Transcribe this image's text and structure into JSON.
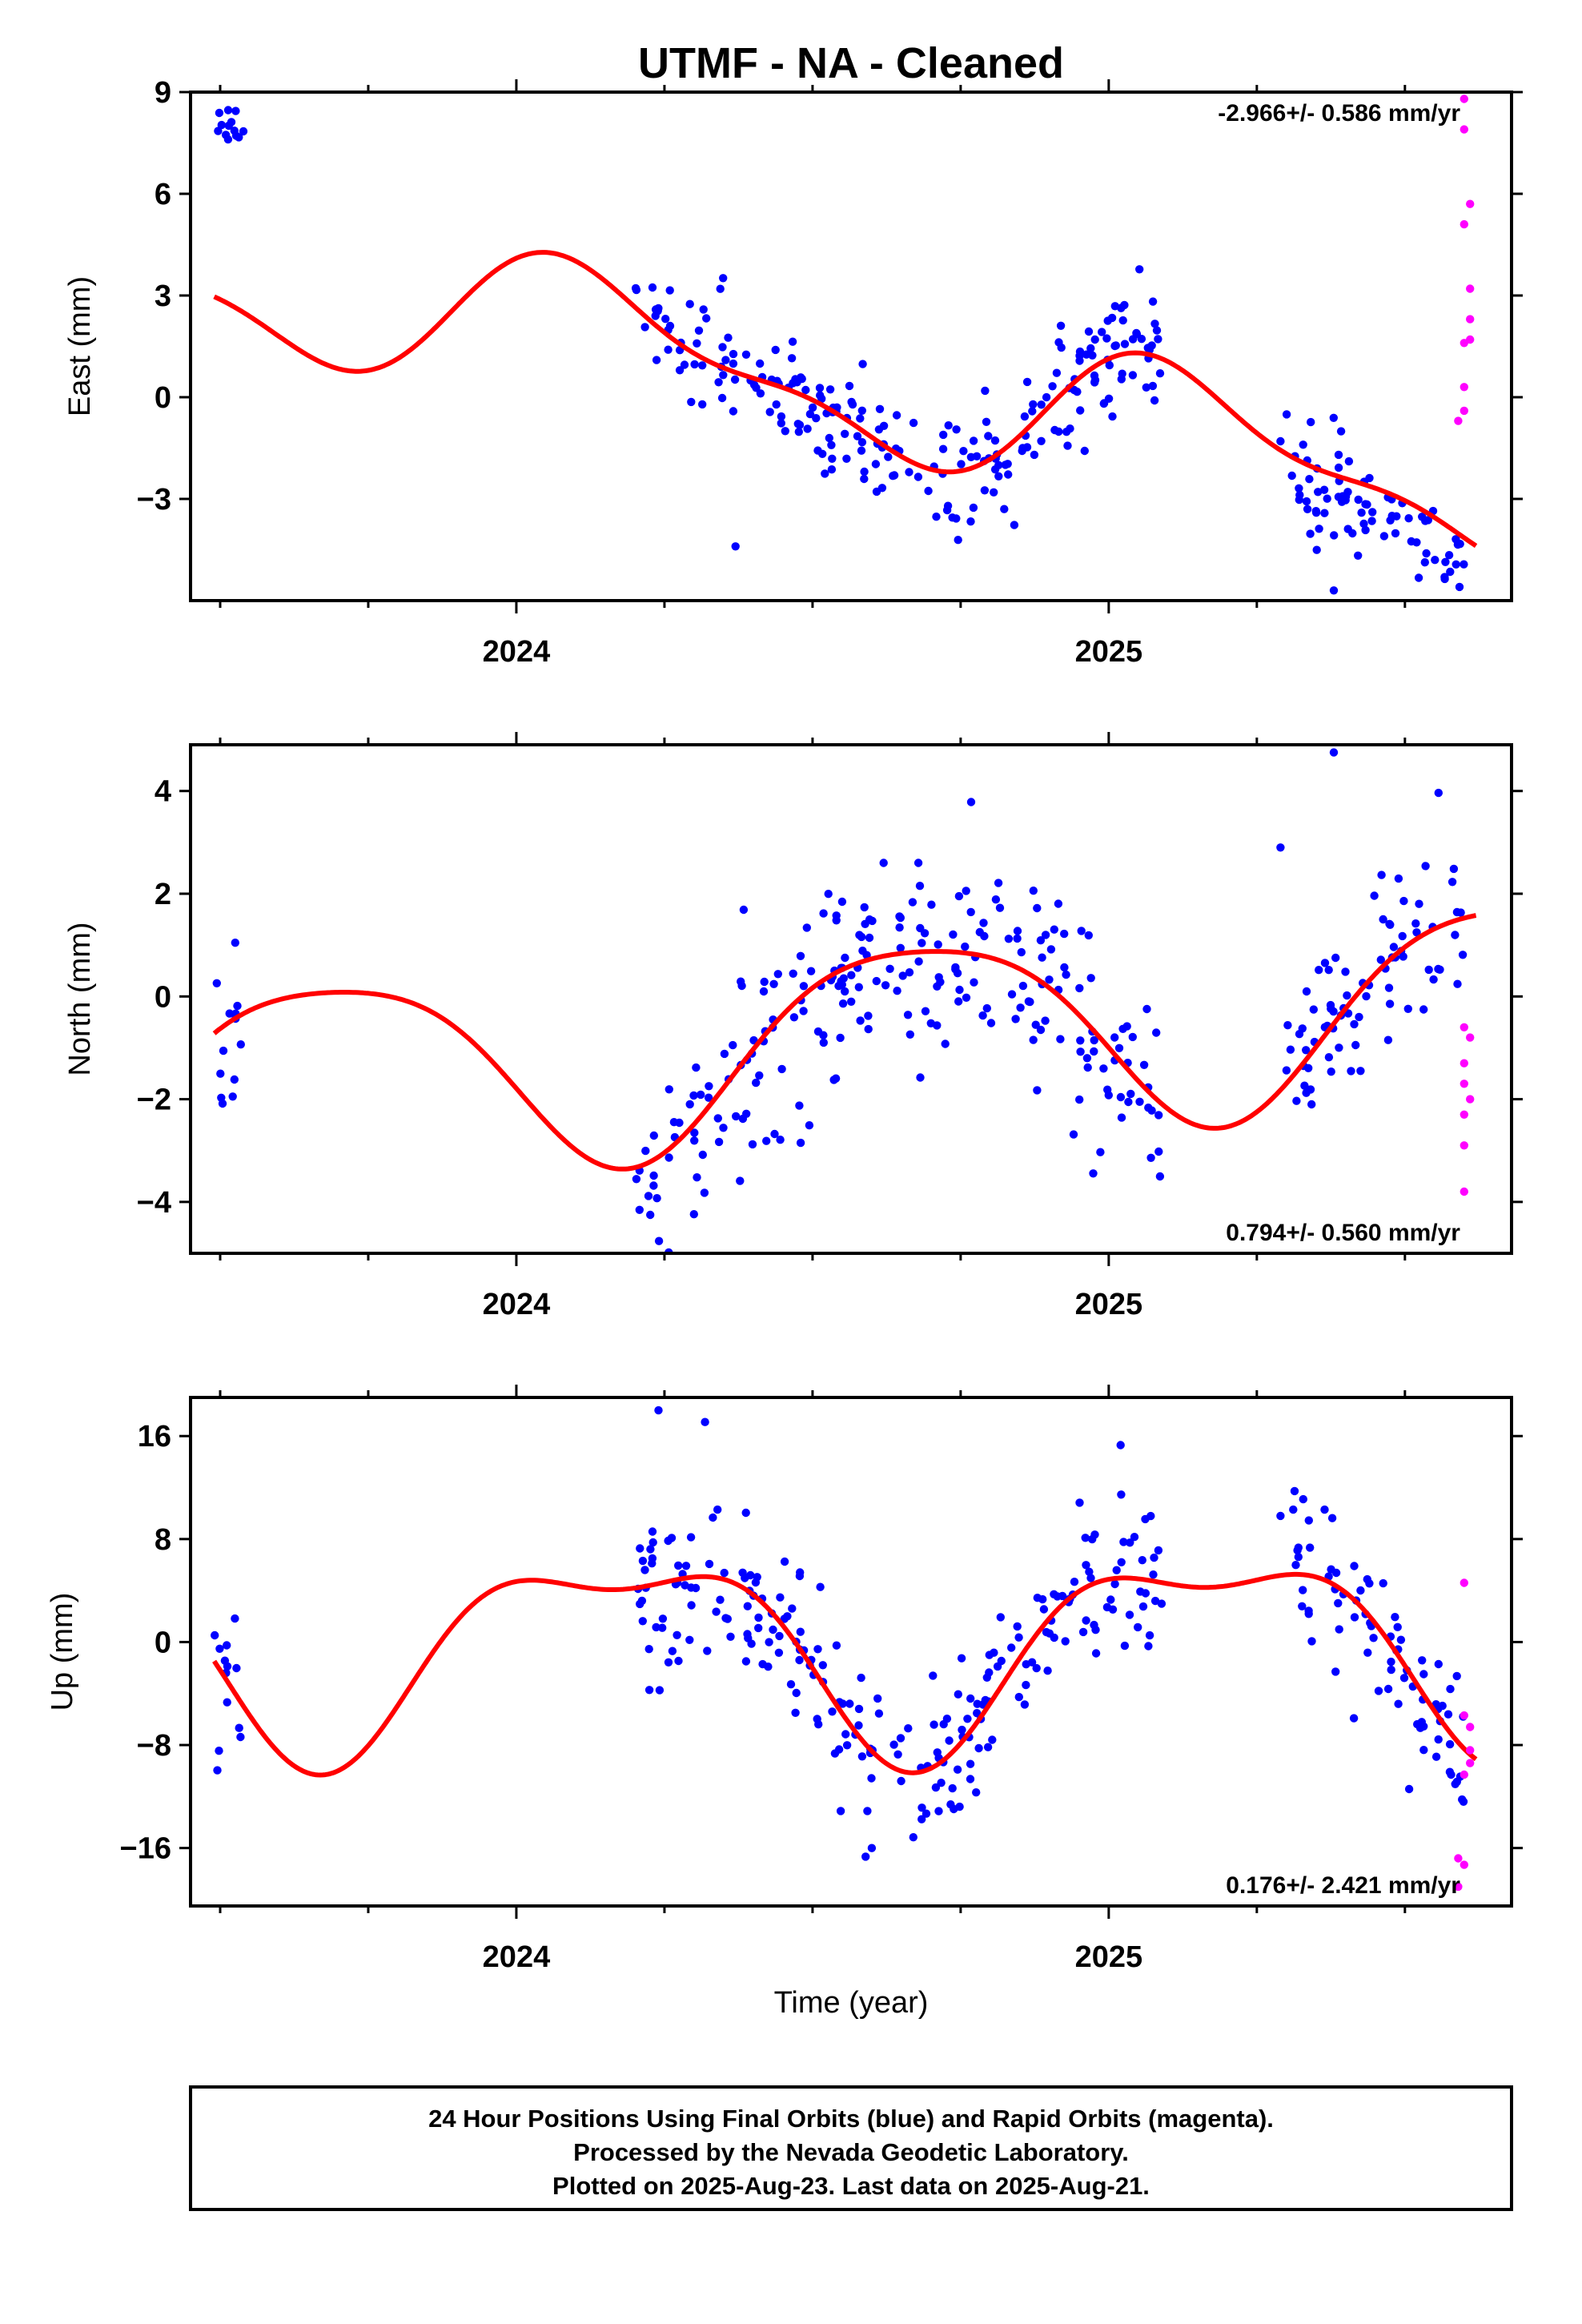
{
  "title": "UTMF  - NA - Cleaned",
  "x_axis_label": "Time (year)",
  "footer": {
    "line1": "24 Hour Positions Using Final Orbits (blue) and Rapid Orbits (magenta).",
    "line2": "Processed by the Nevada Geodetic Laboratory.",
    "line3": "Plotted on 2025-Aug-23. Last data on 2025-Aug-21."
  },
  "colors": {
    "final": "#0000ff",
    "rapid": "#ff00ff",
    "model": "#ff0000",
    "frame": "#000000"
  },
  "chart_data": [
    {
      "type": "scatter",
      "ylabel": "East (mm)",
      "rate_label": "-2.966+/- 0.586 mm/yr",
      "rate_position": "top-right",
      "xlim": [
        2023.45,
        2025.68
      ],
      "ylim": [
        -6.0,
        9.0
      ],
      "yticks": [
        -3,
        0,
        3,
        6,
        9
      ],
      "ytick_labels": [
        "−3",
        "0",
        "3",
        "6",
        "9"
      ],
      "xticks": [
        2024,
        2025
      ],
      "xtick_labels": [
        "2024",
        "2025"
      ],
      "minor_xticks": [
        2023.5,
        2023.75,
        2024.25,
        2024.5,
        2024.75,
        2025.25,
        2025.5
      ],
      "seasonal_model": {
        "trend_value_at_2024": 2.05,
        "trend_mm_per_yr": -2.966,
        "annual": [
          1.3,
          1.35
        ],
        "semiannual": [
          0.2,
          0.7
        ]
      },
      "final_segments": [
        [
          2023.49,
          2023.54,
          0.3,
          5.3
        ],
        [
          2024.2,
          2025.09,
          0.9,
          0
        ],
        [
          2025.3,
          2025.6,
          0.8,
          -0.6
        ]
      ],
      "isolated_final": [
        [
          2024.37,
          -4.4
        ],
        [
          2025.29,
          -1.3
        ],
        [
          2025.38,
          -5.7
        ]
      ],
      "rapid_points": [
        [
          2025.6,
          8.8
        ],
        [
          2025.6,
          7.9
        ],
        [
          2025.61,
          5.7
        ],
        [
          2025.6,
          5.1
        ],
        [
          2025.61,
          3.2
        ],
        [
          2025.61,
          2.3
        ],
        [
          2025.61,
          1.7
        ],
        [
          2025.6,
          1.6
        ],
        [
          2025.6,
          0.3
        ],
        [
          2025.59,
          -0.7
        ],
        [
          2025.6,
          -0.4
        ]
      ]
    },
    {
      "type": "scatter",
      "ylabel": "North (mm)",
      "rate_label": "0.794+/- 0.560 mm/yr",
      "rate_position": "bottom-right",
      "xlim": [
        2023.45,
        2025.68
      ],
      "ylim": [
        -5.0,
        4.9
      ],
      "yticks": [
        -4,
        -2,
        0,
        2,
        4
      ],
      "ytick_labels": [
        "−4",
        "−2",
        "0",
        "2",
        "4"
      ],
      "xticks": [
        2024,
        2025
      ],
      "xtick_labels": [
        "2024",
        "2025"
      ],
      "minor_xticks": [
        2023.5,
        2023.75,
        2024.25,
        2024.5,
        2024.75,
        2025.25,
        2025.5
      ],
      "seasonal_model": {
        "trend_value_at_2024": -1.25,
        "trend_mm_per_yr": 0.794,
        "annual": [
          -1.75,
          -0.78
        ],
        "semiannual": [
          -0.24,
          0.24
        ]
      },
      "final_segments": [
        [
          2023.49,
          2023.54,
          0.9,
          0
        ],
        [
          2024.2,
          2025.09,
          1.0,
          0
        ],
        [
          2025.3,
          2025.6,
          0.8,
          0
        ]
      ],
      "isolated_final": [
        [
          2024.62,
          2.6
        ],
        [
          2024.48,
          -2.85
        ],
        [
          2025.29,
          2.9
        ],
        [
          2025.38,
          4.75
        ]
      ],
      "rapid_points": [
        [
          2025.6,
          -0.6
        ],
        [
          2025.61,
          -0.8
        ],
        [
          2025.6,
          -1.3
        ],
        [
          2025.6,
          -1.7
        ],
        [
          2025.61,
          -2.0
        ],
        [
          2025.6,
          -2.3
        ],
        [
          2025.6,
          -2.9
        ],
        [
          2025.6,
          -3.8
        ]
      ]
    },
    {
      "type": "scatter",
      "ylabel": "Up (mm)",
      "rate_label": "0.176+/- 2.421 mm/yr",
      "rate_position": "bottom-right",
      "xlim": [
        2023.45,
        2025.68
      ],
      "ylim": [
        -20.5,
        19.0
      ],
      "yticks": [
        -16,
        -8,
        0,
        8,
        16
      ],
      "ytick_labels": [
        "−16",
        "−8",
        "0",
        "8",
        "16"
      ],
      "xticks": [
        2024,
        2025
      ],
      "xtick_labels": [
        "2024",
        "2025"
      ],
      "minor_xticks": [
        2023.5,
        2023.75,
        2024.25,
        2024.5,
        2024.75,
        2025.25,
        2025.5
      ],
      "seasonal_model": {
        "trend_value_at_2024": -0.2,
        "trend_mm_per_yr": 0.176,
        "annual": [
          6.3,
          3.4
        ],
        "semiannual": [
          -2.5,
          1.5
        ]
      },
      "final_segments": [
        [
          2023.49,
          2023.54,
          3.5,
          0
        ],
        [
          2024.2,
          2025.09,
          3.2,
          0
        ],
        [
          2025.3,
          2025.6,
          3.0,
          0
        ]
      ],
      "isolated_final": [
        [
          2024.24,
          18.0
        ],
        [
          2024.6,
          -16.0
        ],
        [
          2025.29,
          9.8
        ],
        [
          2025.02,
          15.3
        ]
      ],
      "rapid_points": [
        [
          2025.6,
          4.6
        ],
        [
          2025.6,
          -5.7
        ],
        [
          2025.61,
          -6.6
        ],
        [
          2025.61,
          -8.4
        ],
        [
          2025.61,
          -9.4
        ],
        [
          2025.6,
          -10.3
        ],
        [
          2025.59,
          -16.8
        ],
        [
          2025.6,
          -17.3
        ],
        [
          2025.59,
          -19.0
        ]
      ]
    }
  ]
}
